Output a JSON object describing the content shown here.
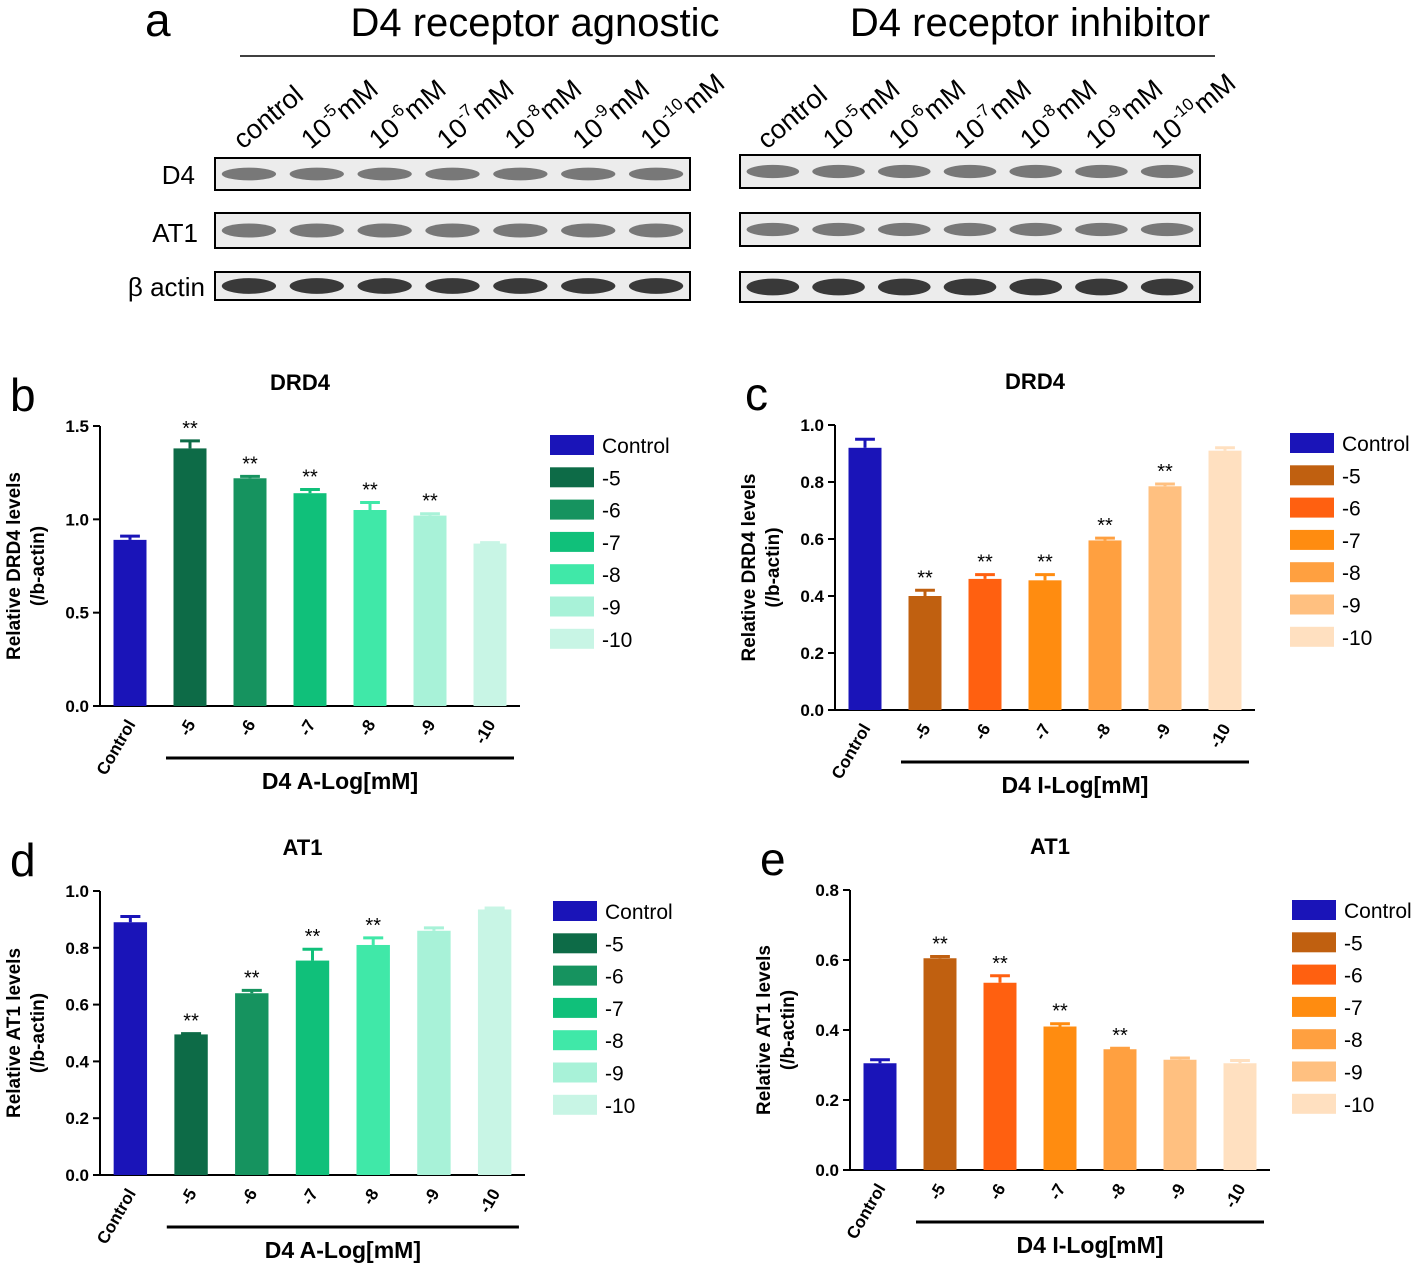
{
  "blot": {
    "panel": "a",
    "groups": [
      "D4 receptor agnostic",
      "D4 receptor inhibitor"
    ],
    "lanes": [
      "control",
      {
        "base": "10",
        "exp": "-5",
        "unit": "mM"
      },
      {
        "base": "10",
        "exp": "-6",
        "unit": "mM"
      },
      {
        "base": "10",
        "exp": "-7",
        "unit": "mM"
      },
      {
        "base": "10",
        "exp": "-8",
        "unit": "mM"
      },
      {
        "base": "10",
        "exp": "-9",
        "unit": "mM"
      },
      {
        "base": "10",
        "exp": "-10",
        "unit": "mM"
      }
    ],
    "rows": [
      "D4",
      "AT1",
      "β actin"
    ]
  },
  "chart_data": [
    {
      "type": "bar",
      "panel": "b",
      "title": "DRD4",
      "ylabel": [
        "Relative DRD4 levels",
        "(/b-actin)"
      ],
      "xlabel": "D4 A-Log[mM]",
      "categories": [
        "Control",
        "-5",
        "-6",
        "-7",
        "-8",
        "-9",
        "-10"
      ],
      "values": [
        0.89,
        1.38,
        1.22,
        1.14,
        1.05,
        1.02,
        0.87
      ],
      "errors": [
        0.02,
        0.04,
        0.01,
        0.02,
        0.04,
        0.01,
        0.005
      ],
      "annotations": [
        null,
        "**",
        "**",
        "**",
        "**",
        "**",
        null
      ],
      "colors": [
        "#1a14b8",
        "#0d6b47",
        "#16935f",
        "#10c07a",
        "#40e8a8",
        "#a8f2d8",
        "#c8f5e5"
      ],
      "ylim": [
        0,
        1.5
      ],
      "yticks": [
        {
          "value": 0,
          "label": "0.0"
        },
        0.5,
        {
          "value": 1,
          "label": "1.0"
        },
        1.5
      ],
      "legend": "right"
    },
    {
      "type": "bar",
      "panel": "c",
      "title": "DRD4",
      "ylabel": [
        "Relative DRD4 levels",
        "(/b-actin)"
      ],
      "xlabel": "D4 I-Log[mM]",
      "categories": [
        "Control",
        "-5",
        "-6",
        "-7",
        "-8",
        "-9",
        "-10"
      ],
      "values": [
        0.92,
        0.4,
        0.46,
        0.455,
        0.595,
        0.785,
        0.91
      ],
      "errors": [
        0.03,
        0.02,
        0.015,
        0.02,
        0.008,
        0.008,
        0.01
      ],
      "annotations": [
        null,
        "**",
        "**",
        "**",
        "**",
        "**",
        null
      ],
      "colors": [
        "#1a14b8",
        "#c06010",
        "#ff6010",
        "#ff8c10",
        "#ffa040",
        "#ffc080",
        "#ffe0c0"
      ],
      "ylim": [
        0,
        1
      ],
      "yticks": [
        {
          "value": 0,
          "label": "0.0"
        },
        0.2,
        0.4,
        0.6,
        0.8,
        {
          "value": 1,
          "label": "1.0"
        }
      ],
      "legend": "right"
    },
    {
      "type": "bar",
      "panel": "d",
      "title": "AT1",
      "ylabel": [
        "Relative AT1 levels",
        "(/b-actin)"
      ],
      "xlabel": "D4 A-Log[mM]",
      "categories": [
        "Control",
        "-5",
        "-6",
        "-7",
        "-8",
        "-9",
        "-10"
      ],
      "values": [
        0.89,
        0.495,
        0.64,
        0.755,
        0.81,
        0.86,
        0.935
      ],
      "errors": [
        0.02,
        0.003,
        0.01,
        0.04,
        0.025,
        0.01,
        0.005
      ],
      "annotations": [
        null,
        "**",
        "**",
        "**",
        "**",
        null,
        null
      ],
      "colors": [
        "#1a14b8",
        "#0d6b47",
        "#16935f",
        "#10c07a",
        "#40e8a8",
        "#a8f2d8",
        "#c8f5e5"
      ],
      "ylim": [
        0,
        1
      ],
      "yticks": [
        {
          "value": 0,
          "label": "0.0"
        },
        0.2,
        0.4,
        0.6,
        0.8,
        {
          "value": 1,
          "label": "1.0"
        }
      ],
      "legend": "right"
    },
    {
      "type": "bar",
      "panel": "e",
      "title": "AT1",
      "ylabel": [
        "Relative AT1 levels",
        "(/b-actin)"
      ],
      "xlabel": "D4 I-Log[mM]",
      "categories": [
        "Control",
        "-5",
        "-6",
        "-7",
        "-8",
        "-9",
        "-10"
      ],
      "values": [
        0.305,
        0.605,
        0.535,
        0.41,
        0.345,
        0.315,
        0.305
      ],
      "errors": [
        0.01,
        0.005,
        0.02,
        0.008,
        0.003,
        0.005,
        0.008
      ],
      "annotations": [
        null,
        "**",
        "**",
        "**",
        "**",
        null,
        null
      ],
      "colors": [
        "#1a14b8",
        "#c06010",
        "#ff6010",
        "#ff8c10",
        "#ffa040",
        "#ffc080",
        "#ffe0c0"
      ],
      "ylim": [
        0,
        0.8
      ],
      "yticks": [
        {
          "value": 0,
          "label": "0.0"
        },
        0.2,
        0.4,
        0.6,
        0.8
      ],
      "legend": "right"
    }
  ]
}
